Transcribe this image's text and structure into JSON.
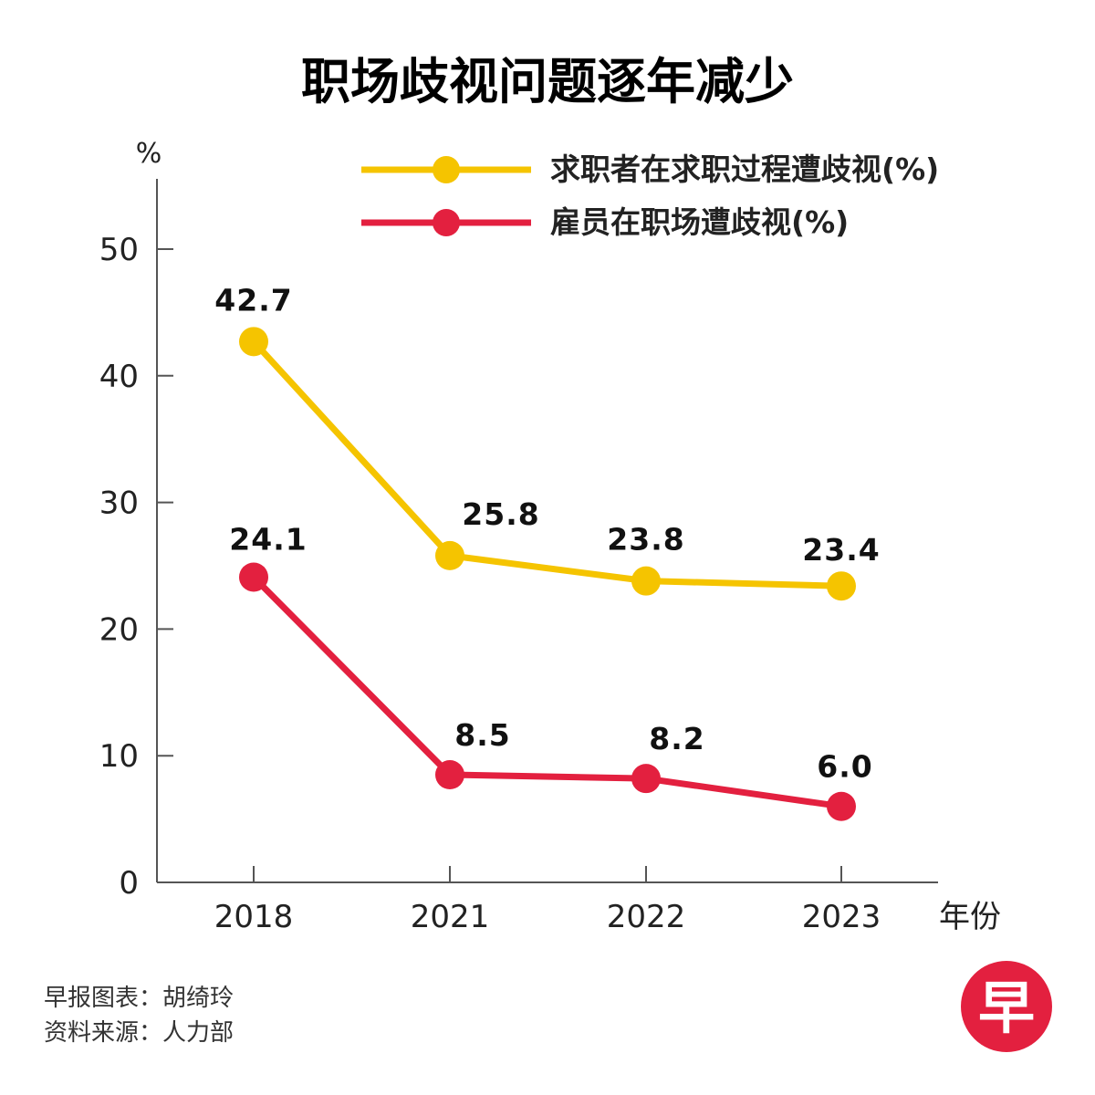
{
  "chart_data": {
    "type": "line",
    "title": "职场歧视问题逐年减少",
    "ylabel": "%",
    "xlabel": "年份",
    "categories": [
      "2018",
      "2021",
      "2022",
      "2023"
    ],
    "ylim": [
      0,
      55
    ],
    "yticks": [
      0,
      10,
      20,
      30,
      40,
      50
    ],
    "grid": false,
    "legend_position": "top-right",
    "series": [
      {
        "name": "求职者在求职过程遭歧视(%)",
        "color": "#F5C400",
        "values": [
          42.7,
          25.8,
          23.8,
          23.4
        ],
        "labels": [
          "42.7",
          "25.8",
          "23.8",
          "23.4"
        ]
      },
      {
        "name": "雇员在职场遭歧视(%)",
        "color": "#E3203F",
        "values": [
          24.1,
          8.5,
          8.2,
          6.0
        ],
        "labels": [
          "24.1",
          "8.5",
          "8.2",
          "6.0"
        ]
      }
    ]
  },
  "footer": {
    "credit": "早报图表：胡绮玲",
    "source": "资料来源：人力部"
  },
  "logo": {
    "text": "早",
    "color": "#E3203F"
  }
}
